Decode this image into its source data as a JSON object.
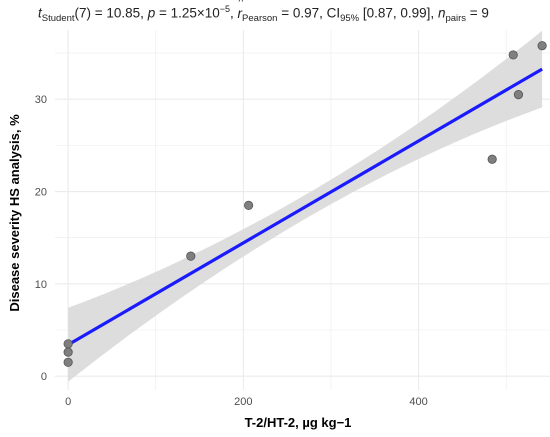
{
  "subtitle": {
    "t_symbol": "t",
    "t_sub": "Student",
    "t_text": "(7) = 10.85, ",
    "p_symbol": "p",
    "p_text": " = 1.25×10",
    "p_exp": "−5",
    "r_sep": ", ",
    "r_symbol": "r",
    "r_sub": "Pearson",
    "r_text": " = 0.97, CI",
    "ci_sub": "95%",
    "ci_text": " [0.87, 0.99], ",
    "n_symbol": "n",
    "n_sub": "pairs",
    "n_text": " = 9"
  },
  "chart_data": {
    "type": "scatter",
    "xlabel": "T-2/HT-2, µg kg−1",
    "ylabel": "Disease severity HS analysis, %",
    "xlim": [
      -15,
      550
    ],
    "ylim": [
      -1.5,
      37.5
    ],
    "x_ticks": [
      0,
      200,
      400
    ],
    "y_ticks": [
      0,
      10,
      20,
      30
    ],
    "grid": true,
    "points": [
      {
        "x": 0,
        "y": 3.5
      },
      {
        "x": 0,
        "y": 2.6
      },
      {
        "x": 0,
        "y": 1.5
      },
      {
        "x": 140,
        "y": 13.0
      },
      {
        "x": 206,
        "y": 18.5
      },
      {
        "x": 484,
        "y": 23.5
      },
      {
        "x": 508,
        "y": 34.8
      },
      {
        "x": 514,
        "y": 30.5
      },
      {
        "x": 541,
        "y": 35.8
      }
    ],
    "fit": {
      "intercept": 3.4,
      "slope": 0.0552,
      "x_range": [
        0,
        541
      ]
    },
    "ci_band": {
      "lower": [
        -0.5,
        29.2
      ],
      "upper": [
        7.5,
        37.5
      ]
    },
    "colors": {
      "line": "#1a1aff",
      "band": "#d9d9d9",
      "points": "#7f7f7f",
      "grid": "#ebebeb"
    }
  }
}
